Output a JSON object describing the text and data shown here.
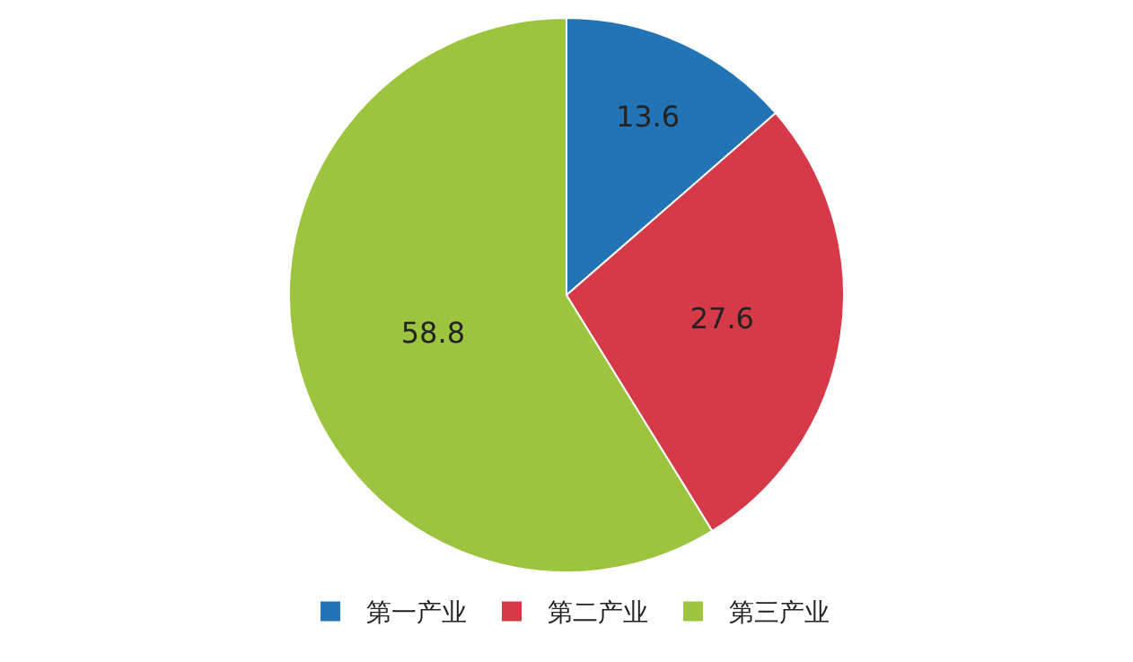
{
  "chart_data": {
    "type": "pie",
    "categories": [
      "第一产业",
      "第二产业",
      "第三产业"
    ],
    "values": [
      13.6,
      27.6,
      58.8
    ],
    "colors": [
      "#2274b5",
      "#d63a48",
      "#9cc43e"
    ],
    "data_labels": true,
    "legend": "bottom"
  }
}
